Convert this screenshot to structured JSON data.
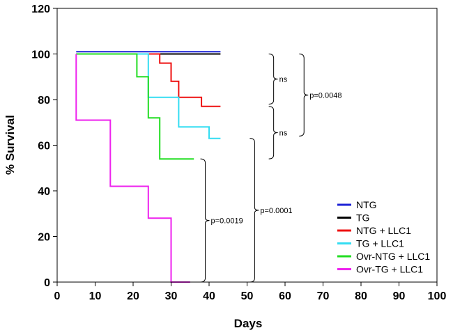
{
  "chart_data": {
    "type": "line",
    "subtype": "kaplan-meier-step",
    "xlabel": "Days",
    "ylabel": "% Survival",
    "xlim": [
      0,
      100
    ],
    "ylim": [
      0,
      120
    ],
    "xticks": [
      "0",
      "10",
      "20",
      "30",
      "40",
      "50",
      "60",
      "70",
      "80",
      "90",
      "100"
    ],
    "yticks": [
      "0",
      "20",
      "40",
      "60",
      "80",
      "100",
      "120"
    ],
    "legend_position": "bottom-right",
    "series": [
      {
        "name": "NTG",
        "color": "#1c22d6",
        "points": [
          [
            5,
            101
          ],
          [
            43,
            101
          ]
        ]
      },
      {
        "name": "TG",
        "color": "#000000",
        "points": [
          [
            21,
            100
          ],
          [
            43,
            100
          ]
        ]
      },
      {
        "name": "NTG + LLC1",
        "color": "#ee1111",
        "points": [
          [
            5,
            100
          ],
          [
            27,
            100
          ],
          [
            27,
            96
          ],
          [
            30,
            96
          ],
          [
            30,
            88
          ],
          [
            32,
            88
          ],
          [
            32,
            81
          ],
          [
            38,
            81
          ],
          [
            38,
            77
          ],
          [
            43,
            77
          ]
        ]
      },
      {
        "name": "TG + LLC1",
        "color": "#33ddf2",
        "points": [
          [
            5,
            100
          ],
          [
            24,
            100
          ],
          [
            24,
            81
          ],
          [
            32,
            81
          ],
          [
            32,
            68
          ],
          [
            40,
            68
          ],
          [
            40,
            63
          ],
          [
            43,
            63
          ]
        ]
      },
      {
        "name": "Ovr-NTG + LLC1",
        "color": "#22dd22",
        "points": [
          [
            5,
            100
          ],
          [
            21,
            100
          ],
          [
            21,
            90
          ],
          [
            24,
            90
          ],
          [
            24,
            72
          ],
          [
            27,
            72
          ],
          [
            27,
            54
          ],
          [
            36,
            54
          ]
        ]
      },
      {
        "name": "Ovr-TG + LLC1",
        "color": "#ee22ee",
        "points": [
          [
            5,
            100
          ],
          [
            5,
            71
          ],
          [
            14,
            71
          ],
          [
            14,
            42
          ],
          [
            24,
            42
          ],
          [
            24,
            28
          ],
          [
            30,
            28
          ],
          [
            30,
            0
          ],
          [
            35,
            0
          ]
        ]
      }
    ],
    "annotations": [
      {
        "label": "ns",
        "from_y": 100,
        "to_y": 78,
        "x": 57
      },
      {
        "label": "ns",
        "from_y": 77,
        "to_y": 54,
        "x": 57
      },
      {
        "label": "p=0.0048",
        "from_y": 100,
        "to_y": 64,
        "x": 65
      },
      {
        "label": "p=0.0019",
        "from_y": 54,
        "to_y": 0,
        "x": 39
      },
      {
        "label": "p=0.0001",
        "from_y": 63,
        "to_y": 0,
        "x": 52
      }
    ]
  }
}
